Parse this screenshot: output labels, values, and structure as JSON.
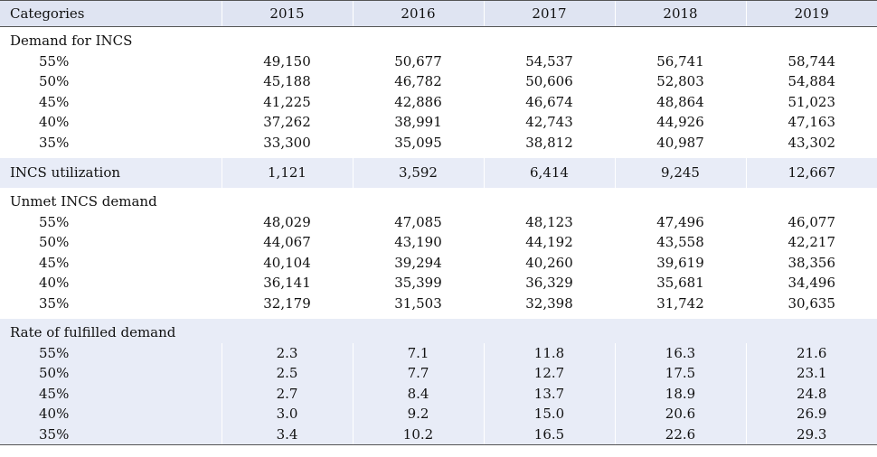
{
  "header": {
    "categories": "Categories",
    "years": [
      "2015",
      "2016",
      "2017",
      "2018",
      "2019"
    ]
  },
  "sections": {
    "demand": {
      "title": "Demand for INCS",
      "rows": [
        {
          "label": "55%",
          "values": [
            "49,150",
            "50,677",
            "54,537",
            "56,741",
            "58,744"
          ]
        },
        {
          "label": "50%",
          "values": [
            "45,188",
            "46,782",
            "50,606",
            "52,803",
            "54,884"
          ]
        },
        {
          "label": "45%",
          "values": [
            "41,225",
            "42,886",
            "46,674",
            "48,864",
            "51,023"
          ]
        },
        {
          "label": "40%",
          "values": [
            "37,262",
            "38,991",
            "42,743",
            "44,926",
            "47,163"
          ]
        },
        {
          "label": "35%",
          "values": [
            "33,300",
            "35,095",
            "38,812",
            "40,987",
            "43,302"
          ]
        }
      ]
    },
    "utilization": {
      "title": "INCS utilization",
      "values": [
        "1,121",
        "3,592",
        "6,414",
        "9,245",
        "12,667"
      ]
    },
    "unmet": {
      "title": "Unmet INCS demand",
      "rows": [
        {
          "label": "55%",
          "values": [
            "48,029",
            "47,085",
            "48,123",
            "47,496",
            "46,077"
          ]
        },
        {
          "label": "50%",
          "values": [
            "44,067",
            "43,190",
            "44,192",
            "43,558",
            "42,217"
          ]
        },
        {
          "label": "45%",
          "values": [
            "40,104",
            "39,294",
            "40,260",
            "39,619",
            "38,356"
          ]
        },
        {
          "label": "40%",
          "values": [
            "36,141",
            "35,399",
            "36,329",
            "35,681",
            "34,496"
          ]
        },
        {
          "label": "35%",
          "values": [
            "32,179",
            "31,503",
            "32,398",
            "31,742",
            "30,635"
          ]
        }
      ]
    },
    "rate": {
      "title": "Rate of fulfilled demand",
      "rows": [
        {
          "label": "55%",
          "values": [
            "2.3",
            "7.1",
            "11.8",
            "16.3",
            "21.6"
          ]
        },
        {
          "label": "50%",
          "values": [
            "2.5",
            "7.7",
            "12.7",
            "17.5",
            "23.1"
          ]
        },
        {
          "label": "45%",
          "values": [
            "2.7",
            "8.4",
            "13.7",
            "18.9",
            "24.8"
          ]
        },
        {
          "label": "40%",
          "values": [
            "3.0",
            "9.2",
            "15.0",
            "20.6",
            "26.9"
          ]
        },
        {
          "label": "35%",
          "values": [
            "3.4",
            "10.2",
            "16.5",
            "22.6",
            "29.3"
          ]
        }
      ]
    }
  }
}
